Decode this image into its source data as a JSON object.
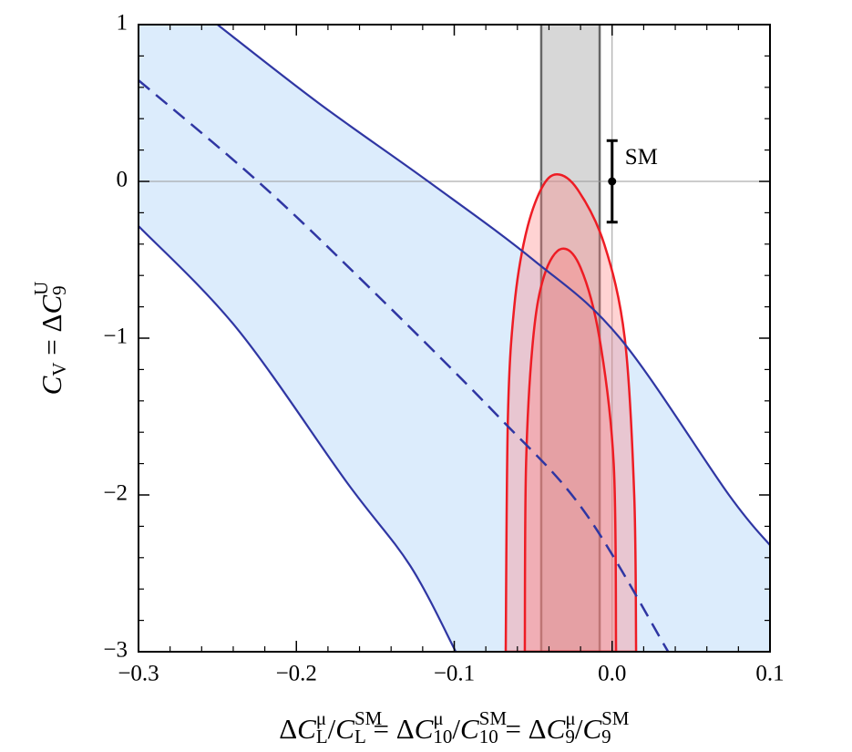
{
  "chart_data": {
    "type": "contour",
    "xlabel": [
      [
        "Δ",
        "base"
      ],
      [
        "C",
        "base-italic"
      ],
      [
        "μ",
        "sup"
      ],
      [
        "L",
        "sub"
      ],
      [
        "/",
        "base"
      ],
      [
        "C",
        "base-italic"
      ],
      [
        "SM",
        "sup"
      ],
      [
        "L",
        "sub"
      ],
      [
        " = Δ",
        "base"
      ],
      [
        "C",
        "base-italic"
      ],
      [
        "μ",
        "sup"
      ],
      [
        "10",
        "sub"
      ],
      [
        "/",
        "base"
      ],
      [
        "C",
        "base-italic"
      ],
      [
        "SM",
        "sup"
      ],
      [
        "10",
        "sub"
      ],
      [
        " = Δ",
        "base"
      ],
      [
        "C",
        "base-italic"
      ],
      [
        "μ",
        "sup"
      ],
      [
        "9",
        "sub"
      ],
      [
        "/",
        "base"
      ],
      [
        "C",
        "base-italic"
      ],
      [
        "SM",
        "sup"
      ],
      [
        "9",
        "sub"
      ]
    ],
    "ylabel": [
      [
        "C",
        "base-italic"
      ],
      [
        "V",
        "sub"
      ],
      [
        " = Δ",
        "base"
      ],
      [
        "C",
        "base-italic"
      ],
      [
        "U",
        "sup"
      ],
      [
        "9",
        "sub"
      ]
    ],
    "xlim": [
      -0.3,
      0.1
    ],
    "ylim": [
      -3,
      1
    ],
    "xticks": [
      {
        "value": -0.3,
        "label": "−0.3"
      },
      {
        "value": -0.2,
        "label": "−0.2"
      },
      {
        "value": -0.1,
        "label": "−0.1"
      },
      {
        "value": 0.0,
        "label": "0.0"
      },
      {
        "value": 0.1,
        "label": "0.1"
      }
    ],
    "yticks": [
      {
        "value": -3,
        "label": "−3"
      },
      {
        "value": -2,
        "label": "−2"
      },
      {
        "value": -1,
        "label": "−1"
      },
      0,
      1
    ],
    "xminorticks": [
      -0.28,
      -0.26,
      -0.24,
      -0.22,
      -0.18,
      -0.16,
      -0.14,
      -0.12,
      -0.08,
      -0.06,
      -0.04,
      -0.02,
      0.02,
      0.04,
      0.06,
      0.08
    ],
    "yminorticks": [
      -2.8,
      -2.6,
      -2.4,
      -2.2,
      -1.8,
      -1.6,
      -1.4,
      -1.2,
      -0.8,
      -0.6,
      -0.4,
      -0.2,
      0.2,
      0.4,
      0.6,
      0.8
    ],
    "reference_lines": {
      "x": 0,
      "y": 0,
      "color": "#9a9a9a"
    },
    "band": {
      "fill": "#dcecfc",
      "line_color": "#2f36a3",
      "upper": {
        "x": [
          -0.25,
          -0.186,
          -0.1165,
          -0.05,
          0.005,
          0.074,
          0.1
        ],
        "y": [
          1,
          0.5,
          0,
          -0.5,
          -1,
          -2,
          -2.32
        ]
      },
      "lower": {
        "x": [
          -0.3,
          -0.2375,
          -0.168,
          -0.128,
          -0.099
        ],
        "y": [
          -0.285,
          -0.94,
          -1.92,
          -2.45,
          -3
        ]
      },
      "center": {
        "x": [
          -0.3,
          -0.2244,
          -0.157,
          -0.073,
          -0.018,
          0.0355
        ],
        "y": [
          0.645,
          0,
          -0.645,
          -1.49,
          -2.1,
          -3
        ],
        "dashed": true
      }
    },
    "vband": {
      "xmin": -0.0449,
      "xmax": -0.0079,
      "fill": "#9a9a9a",
      "line_color": "#666666"
    },
    "contours": [
      {
        "x": [
          -0.0674,
          -0.066,
          -0.062,
          -0.055,
          -0.045,
          -0.035,
          -0.022,
          -0.005,
          0.008,
          0.014,
          0.0152
        ],
        "y": [
          -3,
          -1.5,
          -0.8,
          -0.35,
          -0.05,
          0.045,
          -0.05,
          -0.4,
          -1.0,
          -2.0,
          -3
        ],
        "fill": "#ff8080",
        "color": "#ee1c24"
      },
      {
        "x": [
          -0.0553,
          -0.0545,
          -0.05,
          -0.043,
          -0.032,
          -0.02,
          -0.008,
          0.001,
          0.0025
        ],
        "y": [
          -3,
          -1.8,
          -1.0,
          -0.6,
          -0.43,
          -0.55,
          -1.0,
          -1.8,
          -3
        ],
        "fill": "#ff8080",
        "color": "#ee1c24"
      }
    ],
    "sm": {
      "label": "SM",
      "x": 0,
      "y": 0,
      "error": 0.26,
      "color": "#000000"
    }
  }
}
